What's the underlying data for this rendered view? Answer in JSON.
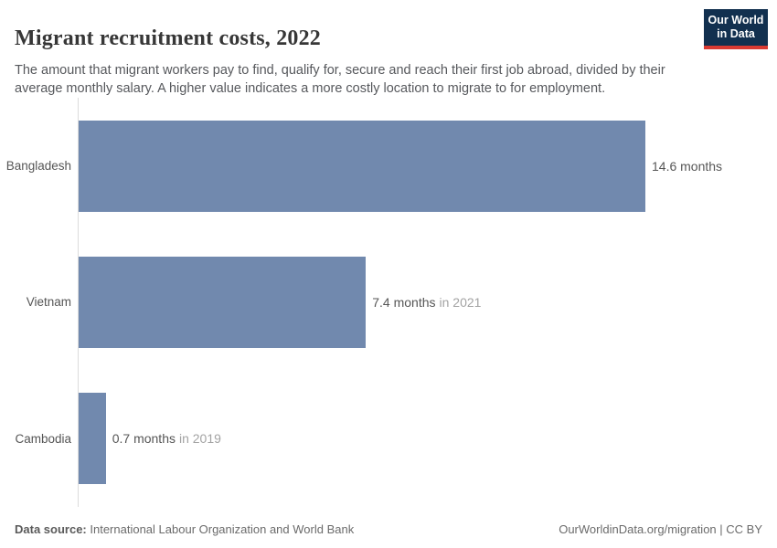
{
  "header": {
    "title": "Migrant recruitment costs, 2022",
    "subtitle": "The amount that migrant workers pay to find, qualify for, secure and reach their first job abroad, divided by their average monthly salary. A higher value indicates a more costly location to migrate to for employment.",
    "logo": {
      "line1": "Our World",
      "line2": "in Data",
      "background": "#12304f",
      "accent": "#d93a32"
    }
  },
  "chart_data": {
    "type": "bar",
    "orientation": "horizontal",
    "title": "Migrant recruitment costs, 2022",
    "categories": [
      "Bangladesh",
      "Vietnam",
      "Cambodia"
    ],
    "values": [
      14.6,
      7.4,
      0.7
    ],
    "value_labels": [
      "14.6 months",
      "7.4 months",
      "0.7 months"
    ],
    "value_notes": [
      "",
      "in 2021",
      "in 2019"
    ],
    "unit": "months",
    "xlim": [
      0,
      14.6
    ],
    "bar_color": "#7189ae",
    "axis_color": "#dcdcdc",
    "grid": false,
    "legend": "none"
  },
  "footer": {
    "source_label": "Data source:",
    "source_text": "International Labour Organization and World Bank",
    "right_text": "OurWorldinData.org/migration | CC BY"
  }
}
